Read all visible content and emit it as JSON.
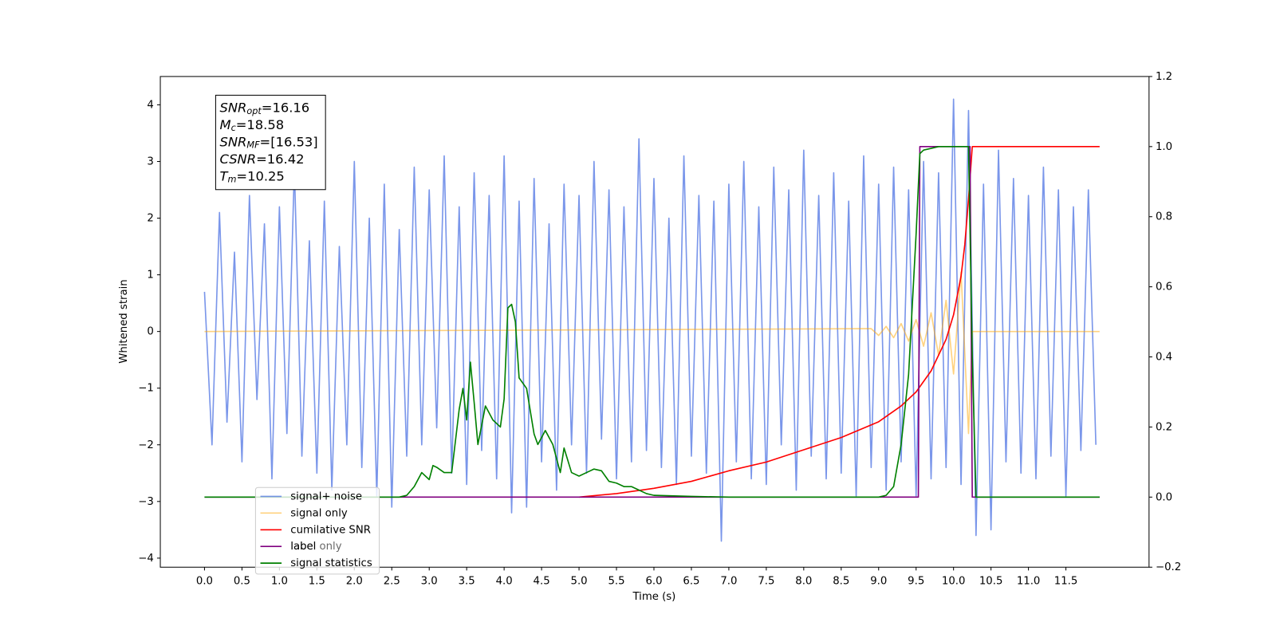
{
  "chart_data": {
    "type": "line",
    "xlabel": "Time (s)",
    "ylabel": "Whitened strain",
    "xlim": [
      -0.59,
      12.61
    ],
    "ylim": [
      -4.16,
      4.5
    ],
    "y2lim": [
      -0.2,
      1.2
    ],
    "xticks": [
      {
        "value": 0,
        "label": "0.0"
      },
      0.5,
      {
        "value": 1,
        "label": "1.0"
      },
      1.5,
      {
        "value": 2,
        "label": "2.0"
      },
      2.5,
      {
        "value": 3,
        "label": "3.0"
      },
      3.5,
      {
        "value": 4,
        "label": "4.0"
      },
      4.5,
      {
        "value": 5,
        "label": "5.0"
      },
      5.5,
      {
        "value": 6,
        "label": "6.0"
      },
      6.5,
      {
        "value": 7,
        "label": "7.0"
      },
      7.5,
      {
        "value": 8,
        "label": "8.0"
      },
      8.5,
      {
        "value": 9,
        "label": "9.0"
      },
      9.5,
      {
        "value": 10,
        "label": "10.0"
      },
      10.5,
      {
        "value": 11,
        "label": "11.0"
      },
      11.5
    ],
    "yticks": [
      {
        "value": -4,
        "label": "−4"
      },
      {
        "value": -3,
        "label": "−3"
      },
      {
        "value": -2,
        "label": "−2"
      },
      {
        "value": -1,
        "label": "−1"
      },
      0,
      1,
      2,
      3,
      4
    ],
    "y2ticks": [
      {
        "value": -0.2,
        "label": "−0.2"
      },
      {
        "value": 0,
        "label": "0.0"
      },
      0.2,
      0.4,
      0.6,
      0.8,
      {
        "value": 1,
        "label": "1.0"
      },
      1.2
    ],
    "grid": false,
    "legend": "lower left",
    "faded_legend_entry": "label only",
    "annotation": [
      {
        "main": "SNR",
        "sub": "opt",
        "rest": "=16.16"
      },
      {
        "main": "M",
        "sub": "c",
        "rest": "=18.58"
      },
      {
        "main": "SNR",
        "sub": "MF",
        "rest": "=[16.53]"
      },
      {
        "main": "CSNR",
        "rest": "=16.42"
      },
      {
        "main": "T",
        "sub": "m",
        "rest": "=10.25"
      }
    ],
    "series": [
      {
        "name": "signal+ noise",
        "color": "#4169e1",
        "alpha": 0.7,
        "axis": "y",
        "x": [
          0.0,
          0.1,
          0.2,
          0.3,
          0.4,
          0.5,
          0.6,
          0.7,
          0.8,
          0.9,
          1.0,
          1.1,
          1.2,
          1.3,
          1.4,
          1.5,
          1.6,
          1.7,
          1.8,
          1.9,
          2.0,
          2.1,
          2.2,
          2.3,
          2.4,
          2.5,
          2.6,
          2.7,
          2.8,
          2.9,
          3.0,
          3.1,
          3.2,
          3.3,
          3.4,
          3.5,
          3.6,
          3.7,
          3.8,
          3.9,
          4.0,
          4.1,
          4.2,
          4.3,
          4.4,
          4.5,
          4.6,
          4.7,
          4.8,
          4.9,
          5.0,
          5.1,
          5.2,
          5.3,
          5.4,
          5.5,
          5.6,
          5.7,
          5.8,
          5.9,
          6.0,
          6.1,
          6.2,
          6.3,
          6.4,
          6.5,
          6.6,
          6.7,
          6.8,
          6.9,
          7.0,
          7.1,
          7.2,
          7.3,
          7.4,
          7.5,
          7.6,
          7.7,
          7.8,
          7.9,
          8.0,
          8.1,
          8.2,
          8.3,
          8.4,
          8.5,
          8.6,
          8.7,
          8.8,
          8.9,
          9.0,
          9.1,
          9.2,
          9.3,
          9.4,
          9.5,
          9.6,
          9.7,
          9.8,
          9.9,
          10.0,
          10.1,
          10.2,
          10.3,
          10.4,
          10.5,
          10.6,
          10.7,
          10.8,
          10.9,
          11.0,
          11.1,
          11.2,
          11.3,
          11.4,
          11.5,
          11.6,
          11.7,
          11.8,
          11.9
        ],
        "values": [
          0.7,
          -2.0,
          2.1,
          -1.6,
          1.4,
          -2.3,
          2.4,
          -1.2,
          1.9,
          -2.6,
          2.2,
          -1.8,
          2.9,
          -2.2,
          1.6,
          -2.5,
          2.3,
          -2.8,
          1.5,
          -2.0,
          3.0,
          -2.4,
          2.0,
          -2.9,
          2.6,
          -3.1,
          1.8,
          -2.2,
          2.9,
          -2.0,
          2.5,
          -1.7,
          3.1,
          -2.5,
          2.2,
          -2.7,
          2.8,
          -2.1,
          2.4,
          -2.6,
          3.1,
          -3.2,
          2.3,
          -3.1,
          2.7,
          -2.3,
          1.9,
          -2.8,
          2.6,
          -2.0,
          2.4,
          -2.5,
          3.0,
          -1.9,
          2.5,
          -2.6,
          2.2,
          -2.3,
          3.4,
          -2.1,
          2.7,
          -2.4,
          2.0,
          -2.7,
          3.1,
          -2.2,
          2.4,
          -2.5,
          2.3,
          -3.7,
          2.6,
          -2.3,
          3.0,
          -2.6,
          2.2,
          -2.7,
          2.9,
          -2.0,
          2.5,
          -2.8,
          3.2,
          -2.2,
          2.4,
          -2.6,
          2.8,
          -2.5,
          2.3,
          -2.9,
          3.1,
          -2.4,
          2.6,
          -2.8,
          2.9,
          -2.3,
          2.5,
          -2.9,
          3.0,
          -2.6,
          2.8,
          -2.4,
          4.1,
          -2.7,
          3.9,
          -3.6,
          2.6,
          -3.5,
          3.2,
          -2.3,
          2.7,
          -2.5,
          2.4,
          -2.6,
          2.9,
          -2.2,
          2.5,
          -2.9,
          2.2,
          -2.1,
          2.5,
          -2.0
        ]
      },
      {
        "name": "signal only",
        "color": "#ffa500",
        "alpha": 0.5,
        "axis": "y",
        "x": [
          0.0,
          8.9,
          9.0,
          9.1,
          9.2,
          9.3,
          9.4,
          9.5,
          9.6,
          9.7,
          9.8,
          9.9,
          10.0,
          10.1,
          10.2,
          10.25,
          11.95
        ],
        "values": [
          0,
          0.05,
          -0.07,
          0.09,
          -0.11,
          0.14,
          -0.17,
          0.21,
          -0.26,
          0.33,
          -0.42,
          0.55,
          -0.75,
          1.05,
          -1.8,
          0,
          0
        ]
      },
      {
        "name": "cumilative SNR",
        "color": "#ff0000",
        "alpha": 1,
        "axis": "y2",
        "x": [
          5.0,
          5.5,
          6.0,
          6.5,
          7.0,
          7.5,
          8.0,
          8.5,
          9.0,
          9.3,
          9.5,
          9.7,
          9.9,
          10.0,
          10.1,
          10.15,
          10.2,
          10.25,
          11.95
        ],
        "values": [
          0,
          0.01,
          0.025,
          0.045,
          0.075,
          0.1,
          0.135,
          0.17,
          0.215,
          0.26,
          0.3,
          0.36,
          0.45,
          0.52,
          0.63,
          0.72,
          0.85,
          1.0,
          1.0
        ]
      },
      {
        "name": "label",
        "color": "#800080",
        "alpha": 1,
        "axis": "y2",
        "x": [
          0.0,
          9.53,
          9.55,
          10.22,
          10.25,
          11.95
        ],
        "values": [
          0,
          0,
          1,
          1,
          0,
          0
        ]
      },
      {
        "name": "signal statistics",
        "color": "#008000",
        "alpha": 1,
        "axis": "y2",
        "x": [
          0.0,
          2.6,
          2.7,
          2.8,
          2.9,
          3.0,
          3.05,
          3.1,
          3.2,
          3.3,
          3.4,
          3.45,
          3.5,
          3.55,
          3.6,
          3.65,
          3.75,
          3.85,
          3.95,
          4.0,
          4.05,
          4.1,
          4.15,
          4.2,
          4.3,
          4.4,
          4.45,
          4.55,
          4.65,
          4.75,
          4.8,
          4.9,
          5.0,
          5.1,
          5.2,
          5.3,
          5.4,
          5.5,
          5.6,
          5.7,
          5.8,
          5.9,
          6.0,
          6.5,
          7.0,
          9.0,
          9.1,
          9.2,
          9.3,
          9.4,
          9.5,
          9.55,
          9.6,
          9.7,
          9.8,
          10.2,
          10.25,
          10.3,
          11.95
        ],
        "values": [
          0,
          0,
          0.005,
          0.03,
          0.07,
          0.05,
          0.09,
          0.085,
          0.07,
          0.07,
          0.25,
          0.31,
          0.22,
          0.385,
          0.27,
          0.15,
          0.26,
          0.22,
          0.2,
          0.28,
          0.54,
          0.55,
          0.5,
          0.34,
          0.31,
          0.18,
          0.15,
          0.19,
          0.15,
          0.07,
          0.14,
          0.07,
          0.06,
          0.07,
          0.08,
          0.075,
          0.045,
          0.04,
          0.03,
          0.03,
          0.02,
          0.01,
          0.005,
          0.002,
          0,
          0,
          0.005,
          0.03,
          0.15,
          0.35,
          0.75,
          0.98,
          0.99,
          0.995,
          1.0,
          1.0,
          0.4,
          0,
          0
        ]
      }
    ]
  }
}
